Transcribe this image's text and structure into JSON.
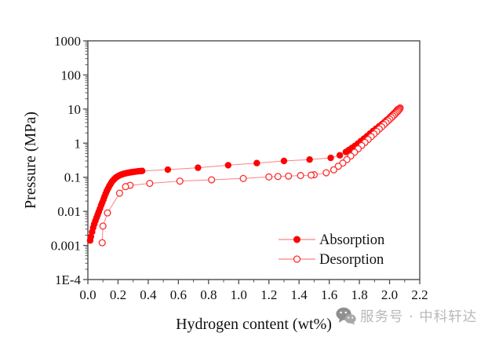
{
  "figure": {
    "type": "pct-isotherm-plot",
    "background": "#ffffff",
    "frame_color": "#4d4d4d",
    "text_color": "#111111"
  },
  "chart_data": {
    "type": "line",
    "title": "",
    "xlabel": "Hydrogen content (wt%)",
    "ylabel": "Pressure (MPa)",
    "xlim": [
      0,
      2.2
    ],
    "ylim": [
      0.0001,
      1000
    ],
    "y_scale": "log",
    "grid": "off",
    "x_tick_labels": [
      "0.0",
      "0.2",
      "0.4",
      "0.6",
      "0.8",
      "1.0",
      "1.2",
      "1.4",
      "1.6",
      "1.8",
      "2.0",
      "2.2"
    ],
    "y_tick_labels": [
      "1000",
      "100",
      "10",
      "1",
      "0.1",
      "0.01",
      "0.001",
      "1E-4"
    ],
    "legend_position": "inside-bottom-right",
    "line_color": "#ff8080",
    "series": [
      {
        "name": "Absorption",
        "marker": "filled-circle",
        "marker_color": "#ff0000",
        "points": [
          [
            0.015,
            0.0014
          ],
          [
            0.02,
            0.0018
          ],
          [
            0.028,
            0.0025
          ],
          [
            0.035,
            0.0033
          ],
          [
            0.042,
            0.0042
          ],
          [
            0.05,
            0.0053
          ],
          [
            0.058,
            0.0066
          ],
          [
            0.065,
            0.008
          ],
          [
            0.072,
            0.0097
          ],
          [
            0.08,
            0.012
          ],
          [
            0.088,
            0.015
          ],
          [
            0.095,
            0.018
          ],
          [
            0.103,
            0.022
          ],
          [
            0.11,
            0.027
          ],
          [
            0.118,
            0.033
          ],
          [
            0.126,
            0.04
          ],
          [
            0.134,
            0.047
          ],
          [
            0.142,
            0.055
          ],
          [
            0.15,
            0.063
          ],
          [
            0.158,
            0.072
          ],
          [
            0.166,
            0.08
          ],
          [
            0.175,
            0.088
          ],
          [
            0.184,
            0.096
          ],
          [
            0.193,
            0.103
          ],
          [
            0.203,
            0.109
          ],
          [
            0.213,
            0.115
          ],
          [
            0.224,
            0.12
          ],
          [
            0.235,
            0.125
          ],
          [
            0.247,
            0.129
          ],
          [
            0.26,
            0.133
          ],
          [
            0.273,
            0.137
          ],
          [
            0.287,
            0.14
          ],
          [
            0.301,
            0.143
          ],
          [
            0.316,
            0.146
          ],
          [
            0.331,
            0.149
          ],
          [
            0.346,
            0.151
          ],
          [
            0.36,
            0.153
          ],
          [
            0.53,
            0.167
          ],
          [
            0.73,
            0.19
          ],
          [
            0.93,
            0.225
          ],
          [
            1.12,
            0.26
          ],
          [
            1.3,
            0.3
          ],
          [
            1.47,
            0.33
          ],
          [
            1.61,
            0.37
          ],
          [
            1.67,
            0.44
          ],
          [
            1.71,
            0.55
          ],
          [
            1.73,
            0.63
          ],
          [
            1.75,
            0.72
          ],
          [
            1.77,
            0.83
          ],
          [
            1.79,
            0.97
          ],
          [
            1.81,
            1.15
          ],
          [
            1.83,
            1.35
          ],
          [
            1.85,
            1.6
          ],
          [
            1.87,
            1.9
          ],
          [
            1.89,
            2.25
          ],
          [
            1.91,
            2.65
          ],
          [
            1.93,
            3.1
          ],
          [
            1.95,
            3.6
          ],
          [
            1.965,
            4.1
          ],
          [
            1.98,
            4.7
          ],
          [
            1.995,
            5.3
          ],
          [
            2.005,
            5.9
          ],
          [
            2.015,
            6.5
          ],
          [
            2.025,
            7.2
          ],
          [
            2.035,
            7.9
          ],
          [
            2.042,
            8.5
          ],
          [
            2.048,
            9.1
          ],
          [
            2.053,
            9.6
          ],
          [
            2.057,
            10
          ]
        ]
      },
      {
        "name": "Desorption",
        "marker": "open-circle",
        "marker_color": "#ff2a2a",
        "points": [
          [
            2.07,
            10.8
          ],
          [
            2.068,
            10.3
          ],
          [
            2.065,
            9.8
          ],
          [
            2.06,
            9.2
          ],
          [
            2.055,
            8.6
          ],
          [
            2.048,
            8
          ],
          [
            2.04,
            7.4
          ],
          [
            2.032,
            6.8
          ],
          [
            2.023,
            6.2
          ],
          [
            2.013,
            5.6
          ],
          [
            2.002,
            5
          ],
          [
            1.99,
            4.5
          ],
          [
            1.977,
            4
          ],
          [
            1.963,
            3.5
          ],
          [
            1.948,
            3
          ],
          [
            1.932,
            2.6
          ],
          [
            1.915,
            2.2
          ],
          [
            1.897,
            1.85
          ],
          [
            1.878,
            1.55
          ],
          [
            1.858,
            1.28
          ],
          [
            1.837,
            1.05
          ],
          [
            1.815,
            0.85
          ],
          [
            1.792,
            0.68
          ],
          [
            1.768,
            0.54
          ],
          [
            1.743,
            0.42
          ],
          [
            1.717,
            0.33
          ],
          [
            1.69,
            0.26
          ],
          [
            1.66,
            0.21
          ],
          [
            1.63,
            0.165
          ],
          [
            1.58,
            0.135
          ],
          [
            1.5,
            0.118
          ],
          [
            1.48,
            0.115
          ],
          [
            1.41,
            0.112
          ],
          [
            1.33,
            0.108
          ],
          [
            1.26,
            0.105
          ],
          [
            1.2,
            0.102
          ],
          [
            1.03,
            0.092
          ],
          [
            0.82,
            0.084
          ],
          [
            0.61,
            0.077
          ],
          [
            0.41,
            0.066
          ],
          [
            0.28,
            0.058
          ],
          [
            0.25,
            0.053
          ],
          [
            0.21,
            0.034
          ],
          [
            0.13,
            0.009
          ],
          [
            0.1,
            0.0037
          ],
          [
            0.095,
            0.0012
          ]
        ]
      }
    ]
  },
  "watermark": {
    "icon": "wechat-icon",
    "text": "服务号 · 中科轩达",
    "text_color": "#b9b9b9",
    "icon_color": "#8f8f8f"
  }
}
